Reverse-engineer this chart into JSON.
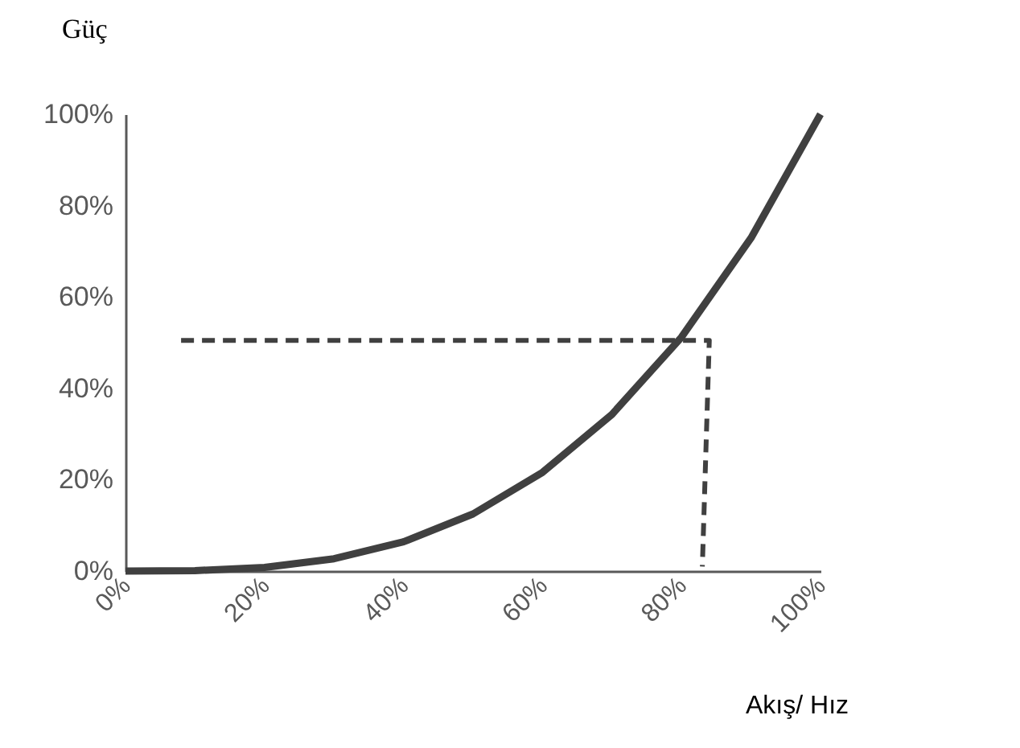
{
  "chart_data": {
    "type": "line",
    "xlabel": "Akış/ Hız",
    "ylabel": "Güç",
    "x": [
      0,
      10,
      20,
      30,
      40,
      50,
      60,
      70,
      80,
      90,
      100
    ],
    "series": [
      {
        "color": "#404040",
        "values": [
          0,
          0.1,
          0.8,
          2.7,
          6.4,
          12.5,
          21.6,
          34.3,
          51.2,
          72.9,
          100
        ],
        "line_style": "solid"
      },
      {
        "color": "#404040",
        "x": [
          8,
          84,
          83
        ],
        "values": [
          50.5,
          50.5,
          1
        ],
        "line_style": "dashed"
      }
    ],
    "xlim": [
      0,
      100
    ],
    "ylim": [
      0,
      100
    ],
    "xticks": [
      {
        "value": 0,
        "label": "0%"
      },
      {
        "value": 20,
        "label": "20%"
      },
      {
        "value": 40,
        "label": "40%"
      },
      {
        "value": 60,
        "label": "60%"
      },
      {
        "value": 80,
        "label": "80%"
      },
      {
        "value": 100,
        "label": "100%"
      }
    ],
    "yticks": [
      {
        "value": 0,
        "label": "0%"
      },
      {
        "value": 20,
        "label": "20%"
      },
      {
        "value": 40,
        "label": "40%"
      },
      {
        "value": 60,
        "label": "60%"
      },
      {
        "value": 80,
        "label": "80%"
      },
      {
        "value": 100,
        "label": "100%"
      }
    ],
    "grid": false,
    "marker": "none"
  }
}
